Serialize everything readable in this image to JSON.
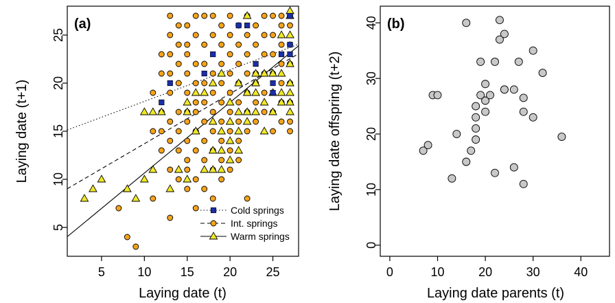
{
  "chart_data": [
    {
      "type": "scatter",
      "panel_label": "(a)",
      "xlabel": "Laying date (t)",
      "ylabel": "Laying date (t+1)",
      "xlim": [
        1,
        28
      ],
      "ylim": [
        2,
        28
      ],
      "xticks": [
        5,
        10,
        15,
        20,
        25
      ],
      "yticks": [
        5,
        10,
        15,
        20,
        25
      ],
      "legend_position": "bottom-right",
      "series": [
        {
          "name": "Cold springs",
          "marker": "square",
          "color": "#1a2ea6",
          "line_style": "dotted",
          "fit": {
            "intercept": 14.8,
            "slope": 0.33
          },
          "points": [
            [
              12,
              18
            ],
            [
              13,
              20
            ],
            [
              17,
              21
            ],
            [
              18,
              23
            ],
            [
              21,
              26
            ],
            [
              22,
              26
            ],
            [
              23,
              22
            ],
            [
              25,
              19
            ],
            [
              25,
              20
            ],
            [
              26,
              23
            ],
            [
              27,
              23
            ],
            [
              27,
              24
            ],
            [
              27,
              27
            ]
          ]
        },
        {
          "name": "Int. springs",
          "marker": "circle",
          "color": "#f5a31a",
          "line_style": "dashed",
          "fit": {
            "intercept": 8.5,
            "slope": 0.52
          },
          "points": [
            [
              7,
              7
            ],
            [
              8,
              4
            ],
            [
              9,
              3
            ],
            [
              11,
              8
            ],
            [
              11,
              15
            ],
            [
              11,
              19
            ],
            [
              12,
              13
            ],
            [
              12,
              15
            ],
            [
              12,
              17
            ],
            [
              12,
              21
            ],
            [
              12,
              23
            ],
            [
              13,
              6
            ],
            [
              13,
              11
            ],
            [
              13,
              14
            ],
            [
              13,
              16
            ],
            [
              13,
              19
            ],
            [
              13,
              21
            ],
            [
              13,
              23
            ],
            [
              13,
              25
            ],
            [
              13,
              27
            ],
            [
              14,
              10
            ],
            [
              14,
              13
            ],
            [
              14,
              15
            ],
            [
              14,
              17
            ],
            [
              14,
              20
            ],
            [
              14,
              22
            ],
            [
              14,
              24
            ],
            [
              14,
              26
            ],
            [
              15,
              9
            ],
            [
              15,
              11
            ],
            [
              15,
              12
            ],
            [
              15,
              14
            ],
            [
              15,
              16
            ],
            [
              15,
              17
            ],
            [
              15,
              19
            ],
            [
              15,
              21
            ],
            [
              15,
              23
            ],
            [
              15,
              24
            ],
            [
              15,
              26
            ],
            [
              16,
              7
            ],
            [
              16,
              10
            ],
            [
              16,
              13
            ],
            [
              16,
              15
            ],
            [
              16,
              17
            ],
            [
              16,
              18
            ],
            [
              16,
              20
            ],
            [
              16,
              22
            ],
            [
              16,
              25
            ],
            [
              16,
              27
            ],
            [
              17,
              9
            ],
            [
              17,
              12
            ],
            [
              17,
              14
            ],
            [
              17,
              16
            ],
            [
              17,
              18
            ],
            [
              17,
              20
            ],
            [
              17,
              22
            ],
            [
              17,
              24
            ],
            [
              17,
              27
            ],
            [
              18,
              8
            ],
            [
              18,
              11
            ],
            [
              18,
              13
            ],
            [
              18,
              15
            ],
            [
              18,
              17
            ],
            [
              18,
              19
            ],
            [
              18,
              21
            ],
            [
              18,
              25
            ],
            [
              18,
              27
            ],
            [
              19,
              10
            ],
            [
              19,
              12
            ],
            [
              19,
              14
            ],
            [
              19,
              16
            ],
            [
              19,
              18
            ],
            [
              19,
              20
            ],
            [
              19,
              22
            ],
            [
              19,
              24
            ],
            [
              19,
              26
            ],
            [
              20,
              11
            ],
            [
              20,
              13
            ],
            [
              20,
              15
            ],
            [
              20,
              17
            ],
            [
              20,
              19
            ],
            [
              20,
              21
            ],
            [
              20,
              23
            ],
            [
              20,
              25
            ],
            [
              20,
              27
            ],
            [
              21,
              12
            ],
            [
              21,
              14
            ],
            [
              21,
              16
            ],
            [
              21,
              18
            ],
            [
              21,
              20
            ],
            [
              21,
              22
            ],
            [
              21,
              24
            ],
            [
              21,
              26
            ],
            [
              22,
              8
            ],
            [
              22,
              15
            ],
            [
              22,
              17
            ],
            [
              22,
              19
            ],
            [
              22,
              21
            ],
            [
              22,
              23
            ],
            [
              22,
              25
            ],
            [
              22,
              27
            ],
            [
              23,
              16
            ],
            [
              23,
              18
            ],
            [
              23,
              20
            ],
            [
              23,
              21
            ],
            [
              23,
              24
            ],
            [
              23,
              26
            ],
            [
              24,
              17
            ],
            [
              24,
              19
            ],
            [
              24,
              21
            ],
            [
              24,
              23
            ],
            [
              24,
              25
            ],
            [
              24,
              27
            ],
            [
              25,
              15
            ],
            [
              25,
              17
            ],
            [
              25,
              21
            ],
            [
              25,
              23
            ],
            [
              25,
              25
            ],
            [
              25,
              27
            ],
            [
              26,
              16
            ],
            [
              26,
              18
            ],
            [
              26,
              20
            ],
            [
              26,
              22
            ],
            [
              26,
              24
            ],
            [
              26,
              26
            ],
            [
              26,
              27
            ],
            [
              27,
              15
            ],
            [
              27,
              16
            ],
            [
              27,
              18
            ],
            [
              27,
              20
            ],
            [
              27,
              22
            ],
            [
              27,
              24
            ],
            [
              27,
              26
            ],
            [
              27,
              27
            ]
          ]
        },
        {
          "name": "Warm springs",
          "marker": "triangle",
          "color": "#f0e826",
          "line_style": "solid",
          "fit": {
            "intercept": 3.3,
            "slope": 0.735
          },
          "points": [
            [
              3,
              8
            ],
            [
              4,
              9
            ],
            [
              5,
              10
            ],
            [
              8,
              9
            ],
            [
              9,
              8
            ],
            [
              10,
              10
            ],
            [
              10,
              17
            ],
            [
              11,
              11
            ],
            [
              11,
              17
            ],
            [
              12,
              17
            ],
            [
              13,
              9
            ],
            [
              14,
              11
            ],
            [
              15,
              10
            ],
            [
              15,
              17
            ],
            [
              15,
              18
            ],
            [
              16,
              15
            ],
            [
              16,
              19
            ],
            [
              17,
              11
            ],
            [
              17,
              19
            ],
            [
              18,
              11
            ],
            [
              18,
              13
            ],
            [
              18,
              16
            ],
            [
              18,
              20
            ],
            [
              19,
              11
            ],
            [
              19,
              13
            ],
            [
              19,
              15
            ],
            [
              19,
              21
            ],
            [
              20,
              12
            ],
            [
              20,
              14
            ],
            [
              20,
              16
            ],
            [
              20,
              18
            ],
            [
              21,
              13
            ],
            [
              21,
              15
            ],
            [
              21,
              17
            ],
            [
              21,
              20
            ],
            [
              22,
              16
            ],
            [
              22,
              17
            ],
            [
              22,
              19
            ],
            [
              22,
              27
            ],
            [
              23,
              17
            ],
            [
              23,
              19
            ],
            [
              23,
              20
            ],
            [
              23,
              21
            ],
            [
              24,
              15
            ],
            [
              24,
              18
            ],
            [
              24,
              21
            ],
            [
              25,
              17
            ],
            [
              25,
              19
            ],
            [
              25,
              21
            ],
            [
              26,
              18
            ],
            [
              26,
              19
            ],
            [
              26,
              21
            ],
            [
              26,
              25
            ],
            [
              27,
              17
            ],
            [
              27,
              18
            ],
            [
              27,
              19
            ],
            [
              27,
              20
            ],
            [
              27,
              22
            ],
            [
              27,
              25
            ],
            [
              27,
              27
            ],
            [
              27,
              27.5
            ]
          ]
        }
      ]
    },
    {
      "type": "scatter",
      "panel_label": "(b)",
      "xlabel": "Laying date parents (t)",
      "ylabel": "Laying date offspring (t+2)",
      "xlim": [
        -2,
        46
      ],
      "ylim": [
        -2,
        43
      ],
      "xticks": [
        0,
        10,
        20,
        30,
        40
      ],
      "yticks": [
        0,
        10,
        20,
        30,
        40
      ],
      "marker": "circle",
      "color": "#c8c8c8",
      "points": [
        [
          7,
          17
        ],
        [
          8,
          18
        ],
        [
          9,
          27
        ],
        [
          10,
          27
        ],
        [
          13,
          12
        ],
        [
          14,
          20
        ],
        [
          16,
          40
        ],
        [
          16,
          15
        ],
        [
          17,
          17
        ],
        [
          18,
          25
        ],
        [
          18,
          23
        ],
        [
          18,
          21
        ],
        [
          18,
          19
        ],
        [
          19,
          33
        ],
        [
          19,
          27
        ],
        [
          20,
          29
        ],
        [
          20,
          26
        ],
        [
          20,
          24
        ],
        [
          21,
          27
        ],
        [
          22,
          33
        ],
        [
          22,
          13
        ],
        [
          23,
          40.5
        ],
        [
          23,
          37
        ],
        [
          24,
          38
        ],
        [
          24,
          28
        ],
        [
          24,
          28
        ],
        [
          26,
          28
        ],
        [
          26,
          14
        ],
        [
          27,
          33
        ],
        [
          28,
          26.5
        ],
        [
          28,
          24
        ],
        [
          28,
          11
        ],
        [
          30,
          35
        ],
        [
          30,
          23
        ],
        [
          32,
          31
        ],
        [
          36,
          19.5
        ]
      ]
    }
  ]
}
